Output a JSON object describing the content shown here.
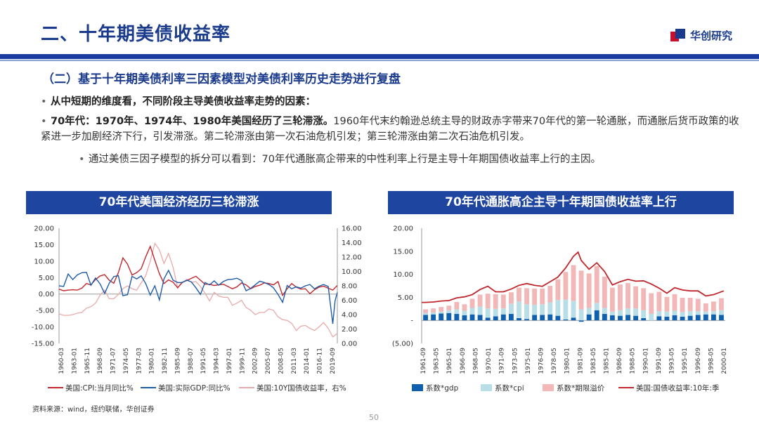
{
  "header": {
    "title": "二、十年期美债收益率",
    "brand": "华创研究",
    "subheading": "（二）基于十年期美债利率三因素模型对美债利率历史走势进行复盘"
  },
  "bullets": {
    "b1": "从中短期的维度看，不同阶段主导美债收益率走势的因素：",
    "b2_bold": "70年代：1970年、1974年、1980年美国经历了三轮滞涨。",
    "b2_text": "1960年代末约翰逊总统主导的财政赤字带来70年代的第一轮通胀，而通胀后货币政策的收紧进一步加剧经济下行，引发滞涨。第二轮滞涨由第一次石油危机引发；第三轮滞涨由第二次石油危机引发。",
    "b3": "通过美债三因子模型的拆分可以看到：70年代通胀高企带来的中性利率上行是主导十年期国债收益率上行的主因。"
  },
  "footer": {
    "source": "资料来源：wind，纽约联储，华创证券",
    "page": "50"
  },
  "colors": {
    "brand_blue": "#1a3a8c",
    "cpi_red": "#c0282d",
    "gdp_blue": "#1f5ca8",
    "yield_pink": "#e8aaa8",
    "gdp_bar": "#1060b0",
    "cpi_bar": "#b8dfe8",
    "premium_bar": "#f2b8b8",
    "yield_line": "#c0282d"
  },
  "chart_data": [
    {
      "type": "line",
      "title": "70年代美国经济经历三轮滞涨",
      "x_tick_labels": [
        "1960-03",
        "1963-01",
        "1965-11",
        "1968-09",
        "1971-07",
        "1974-05",
        "1977-03",
        "1980-01",
        "1982-11",
        "1985-09",
        "1988-07",
        "1991-05",
        "1994-03",
        "1997-01",
        "1999-11",
        "2002-09",
        "2005-07",
        "2008-05",
        "2011-03",
        "2014-01",
        "2016-11",
        "2019-09"
      ],
      "x_range": [
        1960.0,
        2021.0
      ],
      "y_left_ticks": [
        "20.00",
        "15.00",
        "10.00",
        "5.00",
        "0.00",
        "-5.00",
        "-10.00",
        "-15.00"
      ],
      "y_left_range": [
        -15,
        20
      ],
      "y_right_ticks": [
        "16.00",
        "14.00",
        "12.00",
        "10.00",
        "8.00",
        "6.00",
        "4.00",
        "2.00",
        "0.00"
      ],
      "y_right_range": [
        0,
        16
      ],
      "series": [
        {
          "name": "美国:CPI:当月同比%",
          "axis": "left",
          "points": [
            [
              1960,
              1.5
            ],
            [
              1961,
              1.0
            ],
            [
              1962,
              1.2
            ],
            [
              1963,
              1.3
            ],
            [
              1964,
              1.2
            ],
            [
              1965,
              1.8
            ],
            [
              1966,
              3.2
            ],
            [
              1967,
              2.8
            ],
            [
              1968,
              4.4
            ],
            [
              1969,
              5.5
            ],
            [
              1970,
              5.9
            ],
            [
              1971,
              4.2
            ],
            [
              1972,
              3.3
            ],
            [
              1973,
              6.5
            ],
            [
              1974,
              11.0
            ],
            [
              1975,
              9.1
            ],
            [
              1976,
              5.8
            ],
            [
              1977,
              6.5
            ],
            [
              1978,
              7.7
            ],
            [
              1979,
              11.3
            ],
            [
              1980,
              14.5
            ],
            [
              1981,
              10.3
            ],
            [
              1982,
              6.2
            ],
            [
              1983,
              3.2
            ],
            [
              1984,
              4.3
            ],
            [
              1985,
              3.6
            ],
            [
              1986,
              1.9
            ],
            [
              1987,
              3.6
            ],
            [
              1988,
              4.1
            ],
            [
              1989,
              4.8
            ],
            [
              1990,
              5.4
            ],
            [
              1991,
              4.2
            ],
            [
              1992,
              3.0
            ],
            [
              1993,
              3.0
            ],
            [
              1994,
              2.6
            ],
            [
              1995,
              2.8
            ],
            [
              1996,
              3.0
            ],
            [
              1997,
              2.3
            ],
            [
              1998,
              1.6
            ],
            [
              1999,
              2.2
            ],
            [
              2000,
              3.4
            ],
            [
              2001,
              2.8
            ],
            [
              2002,
              1.6
            ],
            [
              2003,
              2.3
            ],
            [
              2004,
              2.7
            ],
            [
              2005,
              3.4
            ],
            [
              2006,
              3.2
            ],
            [
              2007,
              2.8
            ],
            [
              2008,
              3.8
            ],
            [
              2009,
              -0.4
            ],
            [
              2010,
              1.6
            ],
            [
              2011,
              3.2
            ],
            [
              2012,
              2.1
            ],
            [
              2013,
              1.5
            ],
            [
              2014,
              1.6
            ],
            [
              2015,
              0.1
            ],
            [
              2016,
              1.3
            ],
            [
              2017,
              2.1
            ],
            [
              2018,
              2.4
            ],
            [
              2019,
              1.8
            ],
            [
              2020,
              1.2
            ],
            [
              2021,
              2.6
            ]
          ]
        },
        {
          "name": "美国:实际GDP:同比%",
          "axis": "left",
          "points": [
            [
              1960,
              2.5
            ],
            [
              1961,
              2.3
            ],
            [
              1962,
              6.1
            ],
            [
              1963,
              4.4
            ],
            [
              1964,
              5.8
            ],
            [
              1965,
              6.5
            ],
            [
              1966,
              6.6
            ],
            [
              1967,
              2.7
            ],
            [
              1968,
              4.9
            ],
            [
              1969,
              3.1
            ],
            [
              1970,
              0.2
            ],
            [
              1971,
              3.3
            ],
            [
              1972,
              5.3
            ],
            [
              1973,
              5.6
            ],
            [
              1974,
              -0.5
            ],
            [
              1975,
              -0.2
            ],
            [
              1976,
              5.4
            ],
            [
              1977,
              4.6
            ],
            [
              1978,
              5.5
            ],
            [
              1979,
              3.2
            ],
            [
              1980,
              -0.3
            ],
            [
              1981,
              2.5
            ],
            [
              1982,
              -1.8
            ],
            [
              1983,
              4.6
            ],
            [
              1984,
              7.2
            ],
            [
              1985,
              4.2
            ],
            [
              1986,
              3.5
            ],
            [
              1987,
              3.5
            ],
            [
              1988,
              4.2
            ],
            [
              1989,
              3.7
            ],
            [
              1990,
              1.9
            ],
            [
              1991,
              -0.1
            ],
            [
              1992,
              3.5
            ],
            [
              1993,
              2.8
            ],
            [
              1994,
              4.0
            ],
            [
              1995,
              2.7
            ],
            [
              1996,
              3.8
            ],
            [
              1997,
              4.4
            ],
            [
              1998,
              4.5
            ],
            [
              1999,
              4.8
            ],
            [
              2000,
              4.1
            ],
            [
              2001,
              1.0
            ],
            [
              2002,
              1.7
            ],
            [
              2003,
              2.8
            ],
            [
              2004,
              3.9
            ],
            [
              2005,
              3.5
            ],
            [
              2006,
              2.9
            ],
            [
              2007,
              1.9
            ],
            [
              2008,
              -0.1
            ],
            [
              2009,
              -2.5
            ],
            [
              2010,
              2.6
            ],
            [
              2011,
              1.6
            ],
            [
              2012,
              2.2
            ],
            [
              2013,
              1.8
            ],
            [
              2014,
              2.5
            ],
            [
              2015,
              2.9
            ],
            [
              2016,
              1.6
            ],
            [
              2017,
              2.4
            ],
            [
              2018,
              2.9
            ],
            [
              2019,
              2.3
            ],
            [
              2020,
              -9.0
            ],
            [
              2020.5,
              -2.0
            ],
            [
              2021,
              0.5
            ]
          ]
        },
        {
          "name": "美国:10Y国债收益率，右%",
          "axis": "right",
          "points": [
            [
              1960,
              4.1
            ],
            [
              1961,
              3.9
            ],
            [
              1962,
              3.9
            ],
            [
              1963,
              4.0
            ],
            [
              1964,
              4.2
            ],
            [
              1965,
              4.3
            ],
            [
              1966,
              4.9
            ],
            [
              1967,
              5.1
            ],
            [
              1968,
              5.6
            ],
            [
              1969,
              6.7
            ],
            [
              1970,
              7.4
            ],
            [
              1971,
              6.2
            ],
            [
              1972,
              6.2
            ],
            [
              1973,
              6.8
            ],
            [
              1974,
              7.6
            ],
            [
              1975,
              8.0
            ],
            [
              1976,
              7.6
            ],
            [
              1977,
              7.4
            ],
            [
              1978,
              8.4
            ],
            [
              1979,
              9.4
            ],
            [
              1980,
              11.4
            ],
            [
              1981,
              13.9
            ],
            [
              1982,
              13.0
            ],
            [
              1983,
              11.1
            ],
            [
              1984,
              12.5
            ],
            [
              1985,
              10.6
            ],
            [
              1986,
              7.7
            ],
            [
              1987,
              8.4
            ],
            [
              1988,
              8.9
            ],
            [
              1989,
              8.5
            ],
            [
              1990,
              8.6
            ],
            [
              1991,
              7.9
            ],
            [
              1992,
              7.0
            ],
            [
              1993,
              5.9
            ],
            [
              1994,
              7.1
            ],
            [
              1995,
              6.6
            ],
            [
              1996,
              6.4
            ],
            [
              1997,
              6.4
            ],
            [
              1998,
              5.3
            ],
            [
              1999,
              5.6
            ],
            [
              2000,
              6.0
            ],
            [
              2001,
              5.0
            ],
            [
              2002,
              4.6
            ],
            [
              2003,
              4.0
            ],
            [
              2004,
              4.3
            ],
            [
              2005,
              4.3
            ],
            [
              2006,
              4.8
            ],
            [
              2007,
              4.6
            ],
            [
              2008,
              3.7
            ],
            [
              2009,
              3.3
            ],
            [
              2010,
              3.2
            ],
            [
              2011,
              2.8
            ],
            [
              2012,
              1.8
            ],
            [
              2013,
              2.4
            ],
            [
              2014,
              2.5
            ],
            [
              2015,
              2.1
            ],
            [
              2016,
              1.8
            ],
            [
              2017,
              2.3
            ],
            [
              2018,
              2.9
            ],
            [
              2019,
              2.1
            ],
            [
              2020,
              0.9
            ],
            [
              2021,
              1.4
            ]
          ]
        }
      ],
      "legend": "bottom"
    },
    {
      "type": "bar",
      "stacked": true,
      "title": "70年代通胀高企主导十年期国债收益率上行",
      "x_tick_labels": [
        "1961-09",
        "1963-05",
        "1965-01",
        "1966-09",
        "1968-05",
        "1970-01",
        "1971-09",
        "1973-05",
        "1975-01",
        "1976-09",
        "1978-05",
        "1980-01",
        "1981-09",
        "1983-05",
        "1985-01",
        "1986-09",
        "1988-05",
        "1990-01",
        "1991-09",
        "1993-05",
        "1995-01",
        "1996-09",
        "1998-05",
        "2000-01"
      ],
      "x_range": [
        1961.5,
        2000.5
      ],
      "y_ticks": [
        "20.00",
        "15.00",
        "10.00",
        "5.00",
        "-",
        "(5.00)"
      ],
      "y_range": [
        -5,
        20
      ],
      "categories": [
        1962,
        1963,
        1964,
        1965,
        1966,
        1967,
        1968,
        1969,
        1970,
        1971,
        1972,
        1973,
        1974,
        1975,
        1976,
        1977,
        1978,
        1979,
        1980,
        1981,
        1982,
        1983,
        1984,
        1985,
        1986,
        1987,
        1988,
        1989,
        1990,
        1991,
        1992,
        1993,
        1994,
        1995,
        1996,
        1997,
        1998,
        1999,
        2000
      ],
      "series": [
        {
          "name": "系数*gdp",
          "values": [
            1.2,
            1.3,
            1.5,
            1.6,
            1.4,
            1.1,
            1.3,
            1.2,
            0.6,
            0.9,
            1.3,
            1.4,
            0.5,
            0.3,
            1.2,
            1.2,
            1.3,
            1.0,
            0.2,
            0.6,
            -0.3,
            1.3,
            2.2,
            1.4,
            1.1,
            1.0,
            1.2,
            1.0,
            0.5,
            0.0,
            0.9,
            0.8,
            1.1,
            0.8,
            1.0,
            1.2,
            1.3,
            1.3,
            1.2
          ]
        },
        {
          "name": "系数*cpi",
          "values": [
            0.4,
            0.4,
            0.4,
            0.6,
            1.0,
            1.0,
            1.4,
            1.8,
            2.0,
            1.6,
            1.3,
            2.2,
            3.6,
            3.2,
            2.2,
            2.3,
            2.6,
            3.4,
            4.3,
            3.6,
            2.4,
            1.4,
            1.6,
            1.3,
            0.8,
            1.2,
            1.4,
            1.6,
            1.7,
            1.4,
            1.1,
            1.1,
            1.0,
            1.0,
            1.0,
            0.8,
            0.6,
            0.7,
            1.0
          ]
        },
        {
          "name": "系数*期限溢价",
          "values": [
            0.8,
            0.9,
            1.0,
            1.0,
            1.6,
            1.4,
            2.0,
            2.6,
            3.2,
            3.2,
            3.0,
            2.5,
            3.0,
            3.5,
            3.5,
            3.4,
            3.6,
            4.5,
            6.0,
            7.8,
            8.4,
            7.5,
            8.0,
            6.8,
            5.2,
            5.6,
            5.5,
            4.8,
            4.8,
            4.5,
            4.2,
            3.2,
            3.6,
            3.1,
            2.9,
            2.7,
            1.8,
            2.1,
            2.6
          ]
        }
      ],
      "line_series": {
        "name": "美国:国债收益率:10年:季",
        "x": [
          1961.5,
          1962,
          1963,
          1964,
          1965,
          1966,
          1967,
          1968,
          1969,
          1970,
          1971,
          1972,
          1973,
          1974,
          1975,
          1976,
          1977,
          1978,
          1979,
          1980,
          1981,
          1981.6,
          1982,
          1983,
          1984,
          1985,
          1986,
          1987,
          1988,
          1989,
          1990,
          1991,
          1992,
          1993,
          1994,
          1995,
          1996,
          1997,
          1998,
          1999,
          2000.3
        ],
        "values": [
          3.9,
          3.9,
          4.0,
          4.2,
          4.3,
          4.9,
          5.1,
          5.6,
          6.7,
          7.4,
          6.2,
          6.2,
          6.8,
          7.6,
          8.0,
          7.6,
          7.4,
          8.4,
          9.4,
          11.4,
          13.9,
          14.8,
          13.0,
          11.1,
          12.5,
          10.6,
          7.7,
          8.4,
          8.9,
          8.5,
          8.6,
          7.9,
          7.0,
          5.9,
          7.1,
          6.6,
          6.4,
          6.4,
          5.3,
          5.6,
          6.4
        ]
      },
      "legend": "bottom"
    }
  ]
}
